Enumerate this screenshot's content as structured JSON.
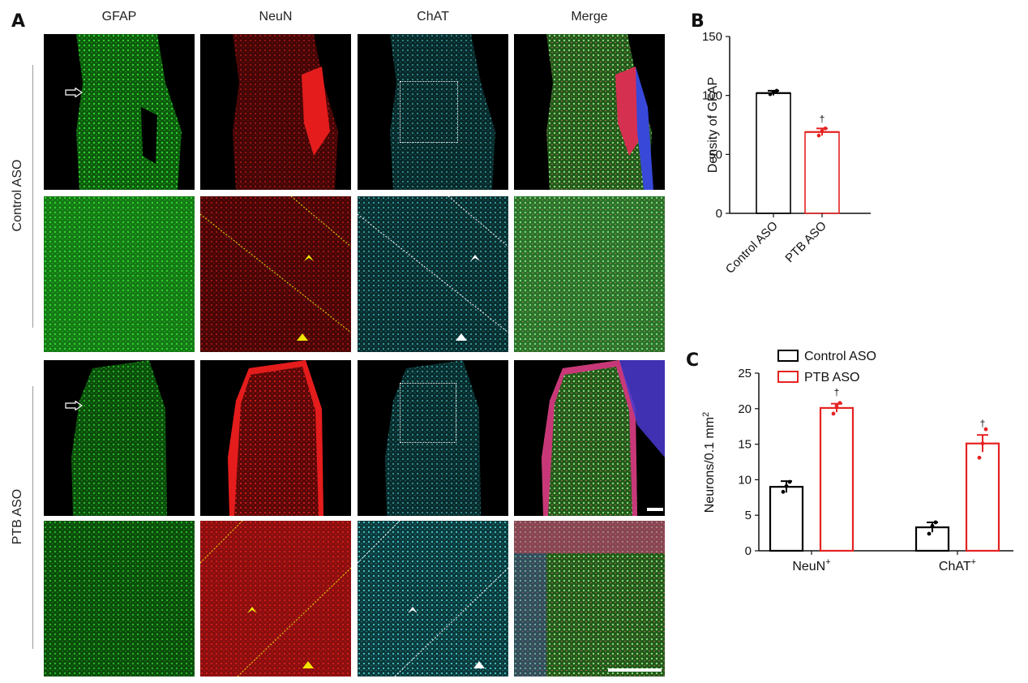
{
  "figure": {
    "panels": {
      "A": "A",
      "B": "B",
      "C": "C"
    },
    "columns": [
      "GFAP",
      "NeuN",
      "ChAT",
      "Merge"
    ],
    "rows": [
      "Control ASO",
      "PTB ASO"
    ]
  },
  "colors": {
    "gfap": "#22c322",
    "neun": "#e01818",
    "chat": "#3ccfd6",
    "control": "#000000",
    "ptb": "#e52222",
    "marker_yellow": "#f2e600"
  },
  "micrographs": {
    "control_overview": [
      "gfap-channel",
      "neun-channel",
      "chat-channel",
      "merge-channel"
    ],
    "control_zoom": [
      "gfap-channel",
      "neun-channel",
      "chat-channel",
      "merge-channel"
    ],
    "ptb_overview": [
      "gfap-channel",
      "neun-channel",
      "chat-channel",
      "merge-channel"
    ],
    "ptb_zoom": [
      "gfap-channel",
      "neun-channel",
      "chat-channel",
      "merge-channel"
    ],
    "markers": [
      "open-arrow",
      "chevron",
      "triangle",
      "dotted-inset-box",
      "dotted-boundary-line",
      "scale-bar"
    ]
  },
  "chart_data": [
    {
      "panel": "B",
      "type": "bar",
      "categories": [
        "Control ASO",
        "PTB ASO"
      ],
      "values": [
        102,
        69
      ],
      "errors": [
        2,
        3
      ],
      "points": [
        [
          101,
          103,
          104
        ],
        [
          66,
          70,
          72
        ]
      ],
      "significance": [
        "",
        "†"
      ],
      "ylabel": "Density of GFAP",
      "xlabel": "",
      "ylim": [
        0,
        150
      ],
      "yticks": [
        0,
        50,
        100,
        150
      ],
      "grid": false
    },
    {
      "panel": "C",
      "type": "bar",
      "categories": [
        "NeuN",
        "ChAT"
      ],
      "category_superscript": "+",
      "series": [
        {
          "name": "Control ASO",
          "values": [
            9.0,
            3.3
          ],
          "errors": [
            0.8,
            0.7
          ],
          "points": [
            [
              8.3,
              9.1,
              9.7
            ],
            [
              2.4,
              3.5,
              4.0
            ]
          ]
        },
        {
          "name": "PTB ASO",
          "values": [
            20.1,
            15.1
          ],
          "errors": [
            0.6,
            1.2
          ],
          "points": [
            [
              19.3,
              20.4,
              20.8
            ],
            [
              13.1,
              15.1,
              17.1
            ]
          ]
        }
      ],
      "significance": [
        "†",
        "†"
      ],
      "ylabel": "Neurons/0.1 mm",
      "ylabel_superscript": "2",
      "xlabel": "",
      "ylim": [
        0,
        25
      ],
      "yticks": [
        0,
        5,
        10,
        15,
        20,
        25
      ],
      "grid": false,
      "legend": "top-left"
    }
  ]
}
